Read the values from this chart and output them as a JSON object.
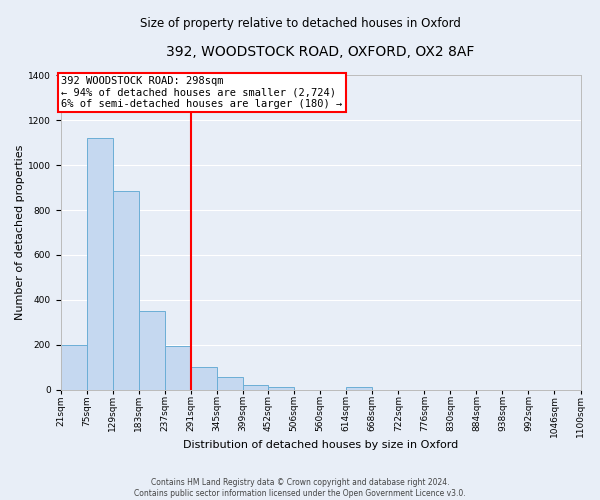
{
  "title": "392, WOODSTOCK ROAD, OXFORD, OX2 8AF",
  "subtitle": "Size of property relative to detached houses in Oxford",
  "xlabel": "Distribution of detached houses by size in Oxford",
  "ylabel": "Number of detached properties",
  "bin_edges": [
    21,
    75,
    129,
    183,
    237,
    291,
    345,
    399,
    452,
    506,
    560,
    614,
    668,
    722,
    776,
    830,
    884,
    938,
    992,
    1046,
    1100
  ],
  "bar_heights": [
    200,
    1120,
    885,
    350,
    195,
    100,
    55,
    20,
    10,
    0,
    0,
    10,
    0,
    0,
    0,
    0,
    0,
    0,
    0,
    0
  ],
  "bar_color": "#c5d8f0",
  "bar_edge_color": "#6baed6",
  "vline_x": 291,
  "vline_color": "red",
  "annotation_line1": "392 WOODSTOCK ROAD: 298sqm",
  "annotation_line2": "← 94% of detached houses are smaller (2,724)",
  "annotation_line3": "6% of semi-detached houses are larger (180) →",
  "ylim": [
    0,
    1400
  ],
  "yticks": [
    0,
    200,
    400,
    600,
    800,
    1000,
    1200,
    1400
  ],
  "tick_labels": [
    "21sqm",
    "75sqm",
    "129sqm",
    "183sqm",
    "237sqm",
    "291sqm",
    "345sqm",
    "399sqm",
    "452sqm",
    "506sqm",
    "560sqm",
    "614sqm",
    "668sqm",
    "722sqm",
    "776sqm",
    "830sqm",
    "884sqm",
    "938sqm",
    "992sqm",
    "1046sqm",
    "1100sqm"
  ],
  "footer_text": "Contains HM Land Registry data © Crown copyright and database right 2024.\nContains public sector information licensed under the Open Government Licence v3.0.",
  "bg_color": "#e8eef7",
  "grid_color": "#ffffff",
  "title_fontsize": 10,
  "subtitle_fontsize": 8.5,
  "axis_label_fontsize": 8,
  "tick_fontsize": 6.5,
  "annotation_fontsize": 7.5,
  "footer_fontsize": 5.5
}
